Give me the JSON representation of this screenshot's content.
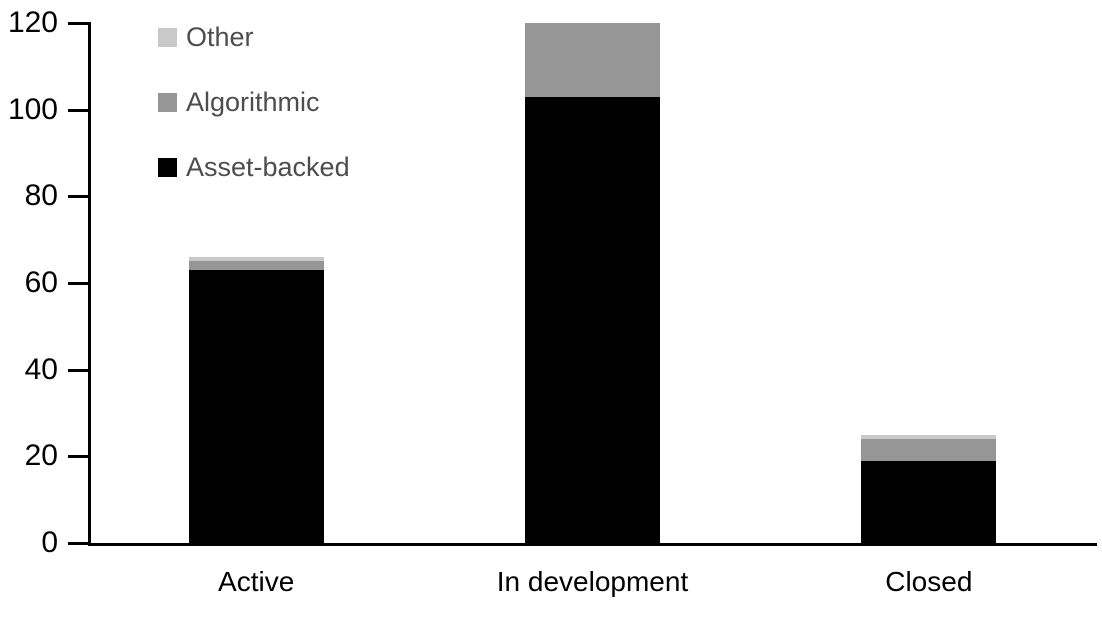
{
  "chart_data": {
    "type": "bar",
    "stacked": true,
    "title": "",
    "xlabel": "",
    "ylabel": "",
    "categories": [
      "Active",
      "In development",
      "Closed"
    ],
    "series": [
      {
        "name": "Asset-backed",
        "color": "#000000",
        "values": [
          63,
          103,
          19
        ]
      },
      {
        "name": "Algorithmic",
        "color": "#969696",
        "values": [
          2,
          17,
          5
        ]
      },
      {
        "name": "Other",
        "color": "#c9c9c9",
        "values": [
          1,
          0,
          1
        ]
      }
    ],
    "ylim": [
      0,
      120
    ],
    "yticks": [
      0,
      20,
      40,
      60,
      80,
      100,
      120
    ],
    "grid": false,
    "axis_color": "#000000",
    "tick_label_color": "#000000",
    "legend": {
      "position": "top-left",
      "order": [
        "Other",
        "Algorithmic",
        "Asset-backed"
      ],
      "text_color": "#4d4d4d"
    }
  }
}
